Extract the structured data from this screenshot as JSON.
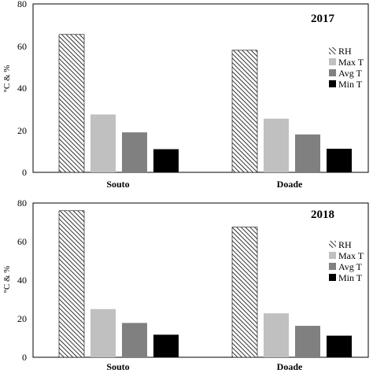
{
  "chart_data": [
    {
      "type": "bar",
      "title": "2017",
      "ylabel": "°C & %",
      "categories": [
        "Souto",
        "Doade"
      ],
      "ylim": [
        0,
        80
      ],
      "yticks": [
        0,
        20,
        40,
        60,
        80
      ],
      "series": [
        {
          "name": "RH",
          "values": [
            65.5,
            58
          ],
          "color": "#000000",
          "pattern": "diagonal-hatch"
        },
        {
          "name": "Max T",
          "values": [
            27.5,
            25.5
          ],
          "color": "#c0c0c0"
        },
        {
          "name": "Avg T",
          "values": [
            19,
            18
          ],
          "color": "#808080"
        },
        {
          "name": "Min T",
          "values": [
            11,
            11.2
          ],
          "color": "#000000"
        }
      ],
      "legend": "right",
      "grid": false
    },
    {
      "type": "bar",
      "title": "2018",
      "ylabel": "°C & %",
      "categories": [
        "Souto",
        "Doade"
      ],
      "ylim": [
        0,
        80
      ],
      "yticks": [
        0,
        20,
        40,
        60,
        80
      ],
      "series": [
        {
          "name": "RH",
          "values": [
            76,
            67.5
          ],
          "color": "#000000",
          "pattern": "diagonal-hatch"
        },
        {
          "name": "Max T",
          "values": [
            25,
            22.8
          ],
          "color": "#c0c0c0"
        },
        {
          "name": "Avg T",
          "values": [
            17.8,
            16.3
          ],
          "color": "#808080"
        },
        {
          "name": "Min T",
          "values": [
            11.7,
            11.2
          ],
          "color": "#000000"
        }
      ],
      "legend": "right",
      "grid": false
    }
  ]
}
